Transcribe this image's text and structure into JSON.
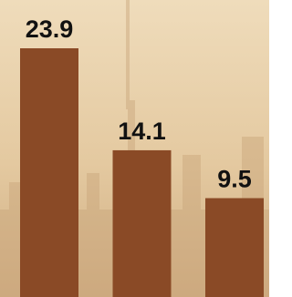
{
  "chart_data": {
    "type": "bar",
    "categories": [
      null,
      null,
      null
    ],
    "values": [
      23.9,
      14.1,
      9.5
    ],
    "color": "#8a4a26"
  }
}
